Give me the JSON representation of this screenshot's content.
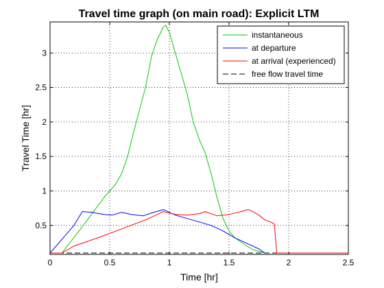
{
  "chart_data": {
    "type": "line",
    "title": "Travel time graph (on main road): Explicit LTM",
    "xlabel": "Time [hr]",
    "ylabel": "Travel Time [hr]",
    "xlim": [
      0,
      2.5
    ],
    "ylim": [
      0.08,
      3.45
    ],
    "xticks": [
      0,
      0.5,
      1,
      1.5,
      2,
      2.5
    ],
    "xtick_labels": [
      "0",
      "0.5",
      "1",
      "1.5",
      "2",
      "2.5"
    ],
    "yticks": [
      0.5,
      1,
      1.5,
      2,
      2.5,
      3
    ],
    "ytick_labels": [
      "0.5",
      "1",
      "1.5",
      "2",
      "2.5",
      "3"
    ],
    "grid": true,
    "grid_style": "dotted",
    "legend_position": "top-right",
    "series": [
      {
        "name": "instantaneous",
        "color": "#00cc00",
        "dash": "solid",
        "x": [
          0.1,
          0.3,
          0.45,
          0.55,
          0.6,
          0.65,
          0.7,
          0.8,
          0.85,
          0.9,
          0.95,
          0.97,
          1.0,
          1.05,
          1.1,
          1.15,
          1.2,
          1.25,
          1.3,
          1.35,
          1.4,
          1.45,
          1.5,
          1.55,
          1.6,
          1.65,
          1.7,
          1.8
        ],
        "y": [
          0.1,
          0.55,
          0.9,
          1.1,
          1.25,
          1.5,
          1.85,
          2.5,
          2.95,
          3.2,
          3.38,
          3.4,
          3.3,
          3.0,
          2.7,
          2.4,
          2.0,
          1.75,
          1.55,
          1.25,
          0.9,
          0.6,
          0.42,
          0.32,
          0.26,
          0.2,
          0.15,
          0.1
        ]
      },
      {
        "name": "at departure",
        "color": "#0000ff",
        "dash": "solid",
        "x": [
          0,
          0.1,
          0.2,
          0.27,
          0.35,
          0.45,
          0.52,
          0.6,
          0.68,
          0.78,
          0.85,
          0.95,
          1.05,
          1.15,
          1.25,
          1.35,
          1.45,
          1.55,
          1.65,
          1.75,
          1.8
        ],
        "y": [
          0.1,
          0.3,
          0.5,
          0.7,
          0.69,
          0.66,
          0.65,
          0.69,
          0.66,
          0.64,
          0.68,
          0.73,
          0.65,
          0.6,
          0.55,
          0.5,
          0.42,
          0.32,
          0.24,
          0.16,
          0.1
        ]
      },
      {
        "name": "at arrival (experienced)",
        "color": "#ff0000",
        "dash": "solid",
        "x": [
          0,
          0.1,
          0.2,
          0.4,
          0.6,
          0.8,
          0.95,
          1.05,
          1.15,
          1.25,
          1.3,
          1.4,
          1.5,
          1.6,
          1.66,
          1.7,
          1.75,
          1.8,
          1.85,
          1.88,
          1.89,
          1.9,
          2.5
        ],
        "y": [
          0.1,
          0.1,
          0.2,
          0.32,
          0.45,
          0.58,
          0.7,
          0.66,
          0.65,
          0.67,
          0.7,
          0.64,
          0.66,
          0.7,
          0.73,
          0.7,
          0.65,
          0.58,
          0.55,
          0.52,
          0.3,
          0.1,
          0.1
        ]
      },
      {
        "name": "free flow travel time",
        "color": "#000000",
        "dash": "dashed",
        "x": [
          0,
          2.5
        ],
        "y": [
          0.1,
          0.1
        ]
      }
    ]
  }
}
